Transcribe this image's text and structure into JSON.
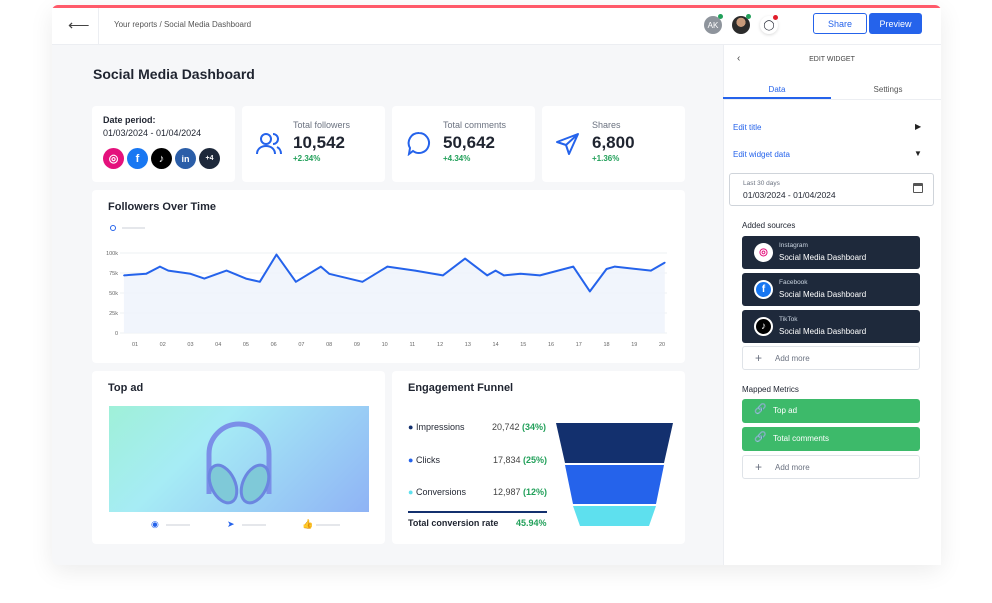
{
  "header": {
    "breadcrumb": "Your reports / Social Media Dashboard",
    "avatar_initials": "AK",
    "share_label": "Share",
    "preview_label": "Preview"
  },
  "page_title": "Social Media Dashboard",
  "date_card": {
    "label": "Date period:",
    "range": "01/03/2024 - 01/04/2024",
    "extra_sources": "+4"
  },
  "kpis": [
    {
      "label": "Total followers",
      "value": "10,542",
      "change": "+2.34%",
      "icon": "users-icon"
    },
    {
      "label": "Total comments",
      "value": "50,642",
      "change": "+4.34%",
      "icon": "chat-bubble-icon"
    },
    {
      "label": "Shares",
      "value": "6,800",
      "change": "+1.36%",
      "icon": "send-icon"
    }
  ],
  "chart_data": {
    "type": "area",
    "title": "Followers Over Time",
    "xlabel": "",
    "ylabel": "",
    "ylim": [
      0,
      100000
    ],
    "yticks": [
      "0",
      "25k",
      "50k",
      "75k",
      "100k"
    ],
    "xticks": [
      "01",
      "02",
      "03",
      "04",
      "05",
      "06",
      "07",
      "08",
      "09",
      "10",
      "11",
      "12",
      "13",
      "14",
      "15",
      "16",
      "17",
      "18",
      "19",
      "20"
    ],
    "grid": true,
    "color": "#2563eb",
    "x": [
      0.6,
      1.4,
      1.9,
      2.2,
      3.0,
      3.5,
      4.3,
      5.0,
      5.5,
      6.1,
      6.8,
      7.7,
      8.0,
      9.2,
      10.1,
      11.1,
      12.1,
      12.9,
      13.7,
      14.0,
      14.3,
      14.9,
      15.6,
      16.8,
      17.4,
      18.0,
      18.3,
      19.6,
      20.1
    ],
    "y": [
      72000,
      74000,
      83000,
      78000,
      74000,
      68000,
      78000,
      68000,
      64000,
      98000,
      64000,
      83000,
      74000,
      64000,
      83000,
      78000,
      72000,
      93000,
      72000,
      78000,
      72000,
      74000,
      72000,
      83000,
      52000,
      80000,
      83000,
      78000,
      88000
    ]
  },
  "top_ad": {
    "title": "Top ad"
  },
  "funnel": {
    "title": "Engagement Funnel",
    "stages": [
      {
        "name": "Impressions",
        "value": "20,742",
        "pct": "(34%)",
        "color": "#13306e"
      },
      {
        "name": "Clicks",
        "value": "17,834",
        "pct": "(25%)",
        "color": "#2563eb"
      },
      {
        "name": "Conversions",
        "value": "12,987",
        "pct": "(12%)",
        "color": "#5ee0ee"
      }
    ],
    "total_label": "Total conversion rate",
    "total_value": "45.94%"
  },
  "panel": {
    "title": "EDIT WIDGET",
    "tabs": [
      "Data",
      "Settings"
    ],
    "active_tab": "Data",
    "edit_title": "Edit title",
    "edit_data": "Edit widget data",
    "date_hint": "Last 30 days",
    "date_value": "01/03/2024 - 01/04/2024",
    "sources_heading": "Added sources",
    "sources": [
      {
        "platform": "Instagram",
        "name": "Social Media Dashboard"
      },
      {
        "platform": "Facebook",
        "name": "Social Media Dashboard"
      },
      {
        "platform": "TikTok",
        "name": "Social Media Dashboard"
      }
    ],
    "add_more": "Add more",
    "metrics_heading": "Mapped Metrics",
    "metrics": [
      "Top ad",
      "Total comments"
    ],
    "add_more_metrics": "Add more"
  }
}
